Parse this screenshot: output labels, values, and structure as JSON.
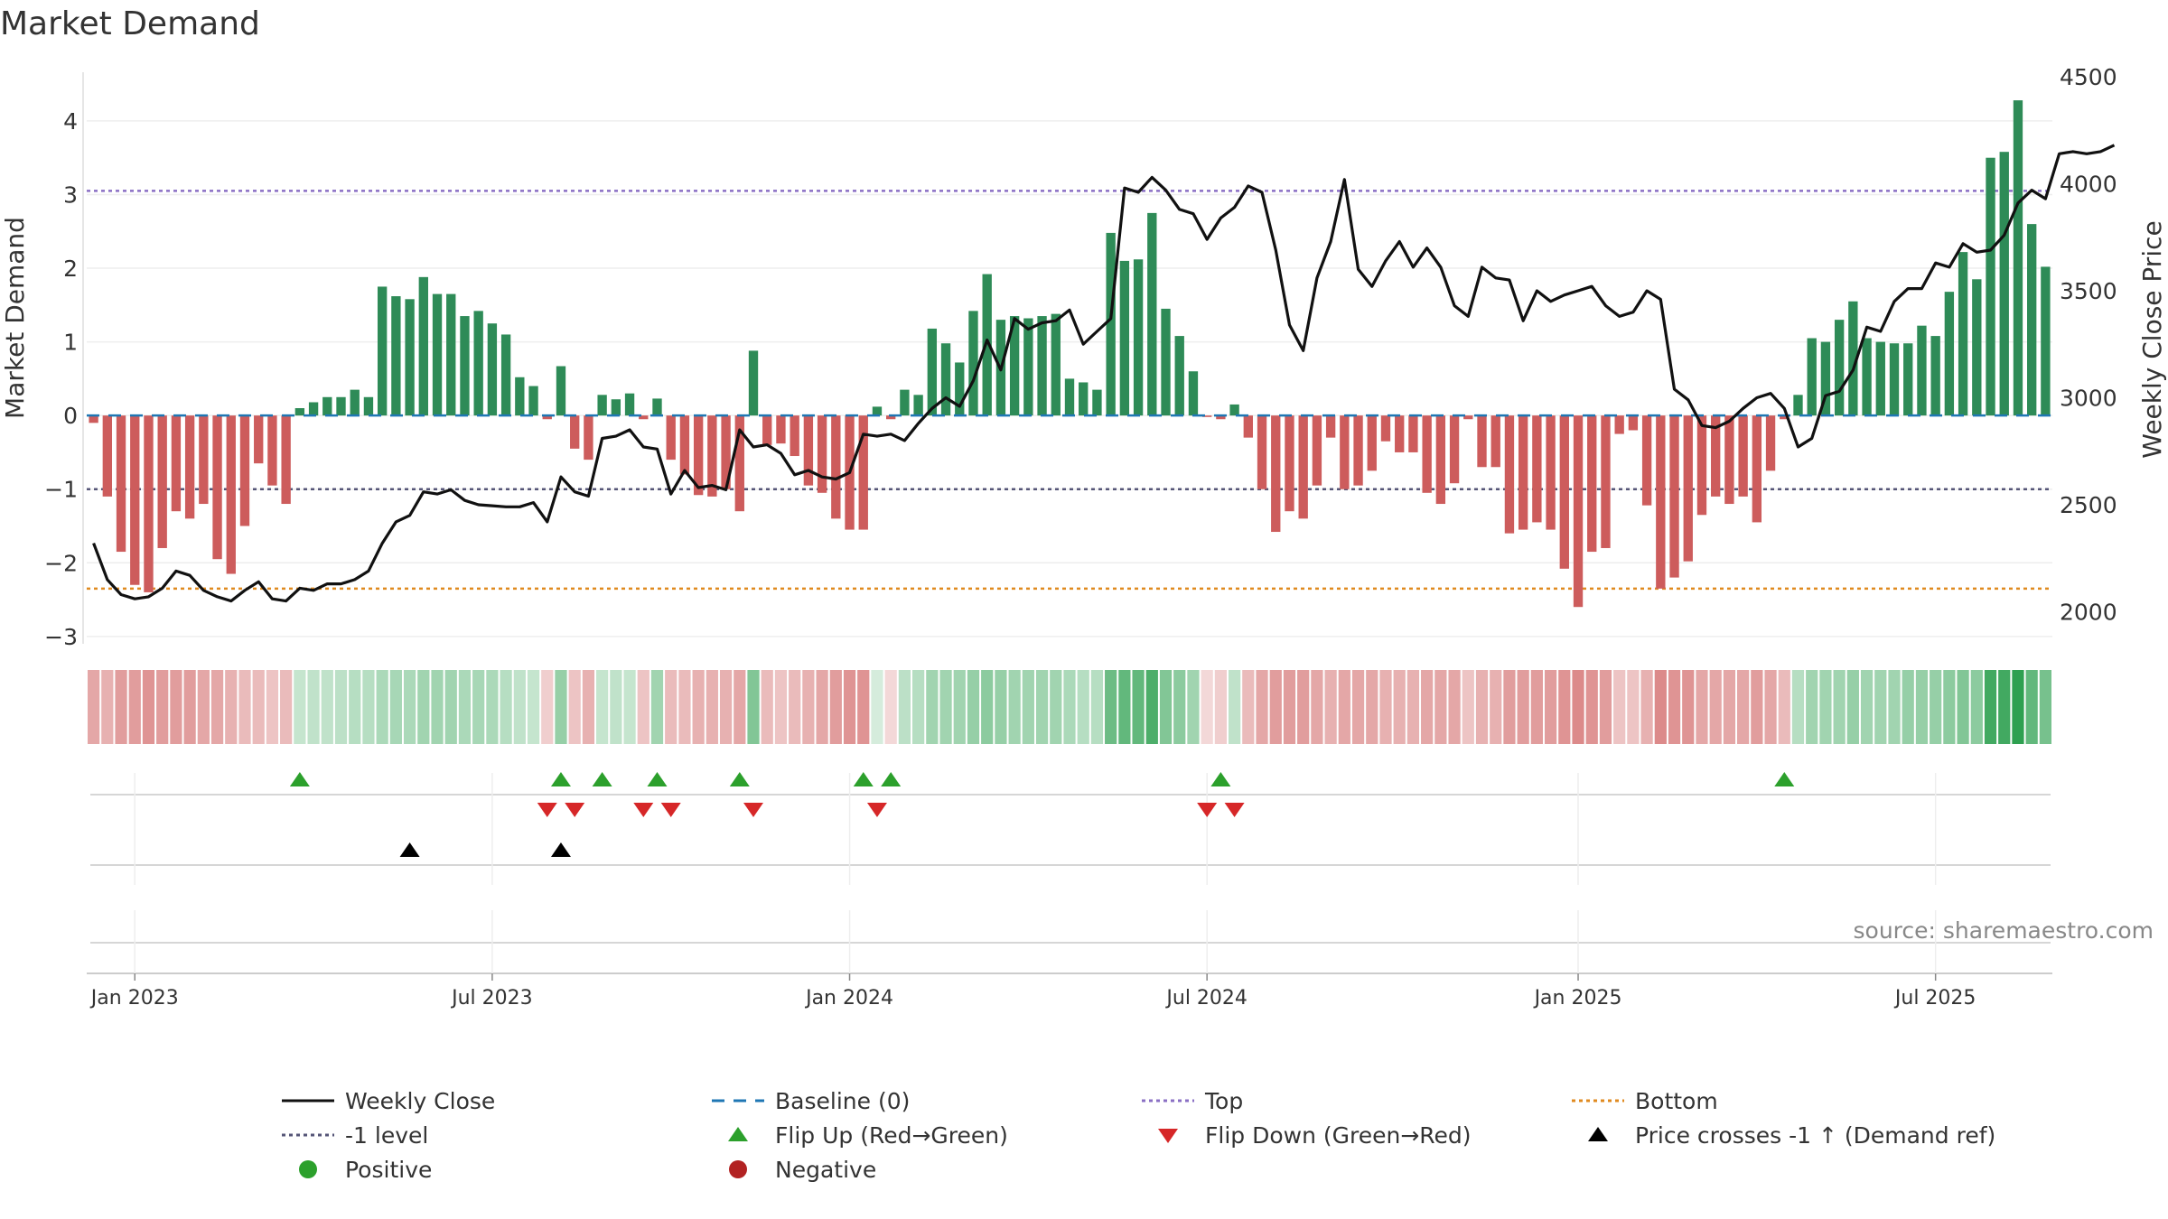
{
  "title": "Market Demand",
  "source": "source: sharemaestro.com",
  "colors": {
    "positive": "#2e8b57",
    "negative": "#cd5c5c",
    "price_line": "#111111",
    "baseline": "#1f77b4",
    "top": "#8a6fc4",
    "bottom": "#e08a1f",
    "minus_one": "#555577",
    "flip_up": "#2ca02c",
    "flip_down": "#d62728",
    "cross": "#000000",
    "positive_dot": "#2ca02c",
    "negative_dot": "#b22222"
  },
  "chart_data": {
    "type": "bar+line",
    "title": "Market Demand",
    "ylabel_left": "Market Demand",
    "ylabel_right": "Weekly Close Price",
    "ylim_left": [
      -3.1,
      4.6
    ],
    "ylim_right": [
      1850,
      4500
    ],
    "yticks_left": [
      "4",
      "3",
      "2",
      "1",
      "0",
      "−1",
      "−2",
      "−3"
    ],
    "yticks_left_values": [
      4,
      3,
      2,
      1,
      0,
      -1,
      -2,
      -3
    ],
    "yticks_right": [
      "4500",
      "4000",
      "3500",
      "3000",
      "2500",
      "2000"
    ],
    "yticks_right_values": [
      4500,
      4000,
      3500,
      3000,
      2500,
      2000
    ],
    "x_tick_labels": [
      "Jan 2023",
      "Jul 2023",
      "Jan 2024",
      "Jul 2024",
      "Jan 2025",
      "Jul 2025"
    ],
    "x_tick_weeks": [
      3,
      29,
      55,
      81,
      108,
      134
    ],
    "levels": {
      "top": 3.05,
      "bottom": -2.35,
      "minus_one": -1.0,
      "baseline": 0
    },
    "demand": [
      -0.1,
      -1.1,
      -1.85,
      -2.3,
      -2.4,
      -1.8,
      -1.3,
      -1.4,
      -1.2,
      -1.95,
      -2.15,
      -1.5,
      -0.65,
      -0.95,
      -1.2,
      0.1,
      0.18,
      0.25,
      0.25,
      0.35,
      0.25,
      1.75,
      1.62,
      1.58,
      1.88,
      1.65,
      1.65,
      1.35,
      1.42,
      1.25,
      1.1,
      0.52,
      0.4,
      -0.05,
      0.67,
      -0.45,
      -0.6,
      0.28,
      0.22,
      0.3,
      -0.05,
      0.23,
      -0.6,
      -0.8,
      -1.08,
      -1.1,
      -1.0,
      -1.3,
      0.88,
      -0.4,
      -0.38,
      -0.55,
      -0.95,
      -1.05,
      -1.4,
      -1.55,
      -1.55,
      0.12,
      -0.05,
      0.35,
      0.28,
      1.18,
      0.98,
      0.72,
      1.42,
      1.92,
      1.3,
      1.35,
      1.32,
      1.35,
      1.38,
      0.5,
      0.45,
      0.35,
      2.48,
      2.1,
      2.12,
      2.75,
      1.45,
      1.08,
      0.6,
      -0.02,
      -0.05,
      0.15,
      -0.3,
      -1.0,
      -1.58,
      -1.3,
      -1.4,
      -0.95,
      -0.3,
      -1.0,
      -0.95,
      -0.75,
      -0.35,
      -0.5,
      -0.5,
      -1.05,
      -1.2,
      -0.92,
      -0.05,
      -0.7,
      -0.7,
      -1.6,
      -1.55,
      -1.45,
      -1.55,
      -2.08,
      -2.6,
      -1.85,
      -1.8,
      -0.25,
      -0.2,
      -1.22,
      -2.35,
      -2.2,
      -1.98,
      -1.35,
      -1.1,
      -1.2,
      -1.1,
      -1.45,
      -0.75,
      -0.05,
      0.28,
      1.05,
      1.0,
      1.3,
      1.55,
      1.05,
      1.0,
      0.98,
      0.98,
      1.22,
      1.08,
      1.68,
      2.22,
      1.85,
      3.5,
      3.58,
      4.28,
      2.6,
      2.02
    ],
    "price": [
      2320,
      2150,
      2080,
      2060,
      2070,
      2110,
      2190,
      2170,
      2100,
      2070,
      2050,
      2100,
      2140,
      2060,
      2050,
      2110,
      2100,
      2130,
      2130,
      2150,
      2190,
      2320,
      2420,
      2450,
      2560,
      2550,
      2570,
      2520,
      2500,
      2495,
      2490,
      2490,
      2510,
      2420,
      2630,
      2560,
      2540,
      2810,
      2820,
      2850,
      2770,
      2760,
      2550,
      2660,
      2580,
      2590,
      2570,
      2850,
      2770,
      2780,
      2740,
      2640,
      2660,
      2630,
      2620,
      2650,
      2830,
      2820,
      2830,
      2800,
      2880,
      2950,
      3000,
      2960,
      3080,
      3270,
      3130,
      3370,
      3320,
      3350,
      3360,
      3410,
      3250,
      3310,
      3370,
      3980,
      3960,
      4030,
      3970,
      3880,
      3860,
      3740,
      3840,
      3890,
      3990,
      3960,
      3690,
      3340,
      3220,
      3560,
      3730,
      4020,
      3600,
      3520,
      3640,
      3730,
      3610,
      3700,
      3610,
      3430,
      3380,
      3610,
      3560,
      3550,
      3360,
      3500,
      3450,
      3480,
      3500,
      3520,
      3430,
      3380,
      3400,
      3500,
      3460,
      3040,
      2990,
      2870,
      2860,
      2890,
      2950,
      3000,
      3020,
      2950,
      2770,
      2810,
      3010,
      3030,
      3130,
      3330,
      3310,
      3450,
      3510,
      3510,
      3630,
      3610,
      3720,
      3680,
      3690,
      3760,
      3910,
      3970,
      3930,
      4140,
      4150,
      4140,
      4150,
      4180
    ],
    "shade": [
      -0.45,
      -0.4,
      -0.5,
      -0.5,
      -0.55,
      -0.5,
      -0.5,
      -0.5,
      -0.45,
      -0.45,
      -0.4,
      -0.35,
      -0.35,
      -0.3,
      -0.35,
      0.28,
      0.3,
      0.3,
      0.32,
      0.35,
      0.35,
      0.4,
      0.42,
      0.4,
      0.45,
      0.45,
      0.45,
      0.4,
      0.42,
      0.4,
      0.35,
      0.3,
      0.28,
      -0.25,
      0.5,
      -0.3,
      -0.4,
      0.28,
      0.3,
      0.28,
      -0.3,
      0.45,
      -0.35,
      -0.35,
      -0.4,
      -0.4,
      -0.4,
      -0.45,
      0.6,
      -0.35,
      -0.3,
      -0.35,
      -0.4,
      -0.45,
      -0.5,
      -0.55,
      -0.55,
      0.2,
      -0.2,
      0.32,
      0.35,
      0.45,
      0.45,
      0.45,
      0.5,
      0.55,
      0.5,
      0.45,
      0.45,
      0.45,
      0.45,
      0.4,
      0.35,
      0.35,
      0.7,
      0.75,
      0.75,
      0.85,
      0.6,
      0.55,
      0.45,
      -0.2,
      -0.25,
      0.3,
      -0.35,
      -0.45,
      -0.5,
      -0.5,
      -0.5,
      -0.45,
      -0.4,
      -0.45,
      -0.45,
      -0.45,
      -0.4,
      -0.4,
      -0.4,
      -0.45,
      -0.45,
      -0.45,
      -0.3,
      -0.4,
      -0.4,
      -0.5,
      -0.5,
      -0.5,
      -0.5,
      -0.55,
      -0.6,
      -0.55,
      -0.5,
      -0.3,
      -0.3,
      -0.4,
      -0.6,
      -0.55,
      -0.55,
      -0.45,
      -0.45,
      -0.45,
      -0.45,
      -0.5,
      -0.45,
      -0.35,
      0.35,
      0.45,
      0.45,
      0.45,
      0.5,
      0.45,
      0.45,
      0.45,
      0.5,
      0.5,
      0.5,
      0.55,
      0.6,
      0.55,
      0.9,
      0.9,
      1.0,
      0.75,
      0.65
    ],
    "flip_up_weeks": [
      15,
      34,
      37,
      41,
      47,
      56,
      58,
      82,
      123
    ],
    "flip_down_weeks": [
      33,
      35,
      40,
      42,
      48,
      57,
      81,
      83
    ],
    "price_cross_weeks": [
      23,
      34
    ],
    "legend": [
      {
        "label": "Weekly Close",
        "kind": "line-solid"
      },
      {
        "label": "Baseline (0)",
        "kind": "line-dash"
      },
      {
        "label": "Top",
        "kind": "line-dot-top"
      },
      {
        "label": "Bottom",
        "kind": "line-dot-bottom"
      },
      {
        "label": "-1 level",
        "kind": "line-dot-minus"
      },
      {
        "label": "Flip Up (Red→Green)",
        "kind": "tri-up"
      },
      {
        "label": "Flip Down (Green→Red)",
        "kind": "tri-down"
      },
      {
        "label": "Price crosses -1 ↑ (Demand ref)",
        "kind": "tri-black"
      },
      {
        "label": "Positive",
        "kind": "dot-pos"
      },
      {
        "label": "Negative",
        "kind": "dot-neg"
      }
    ]
  }
}
